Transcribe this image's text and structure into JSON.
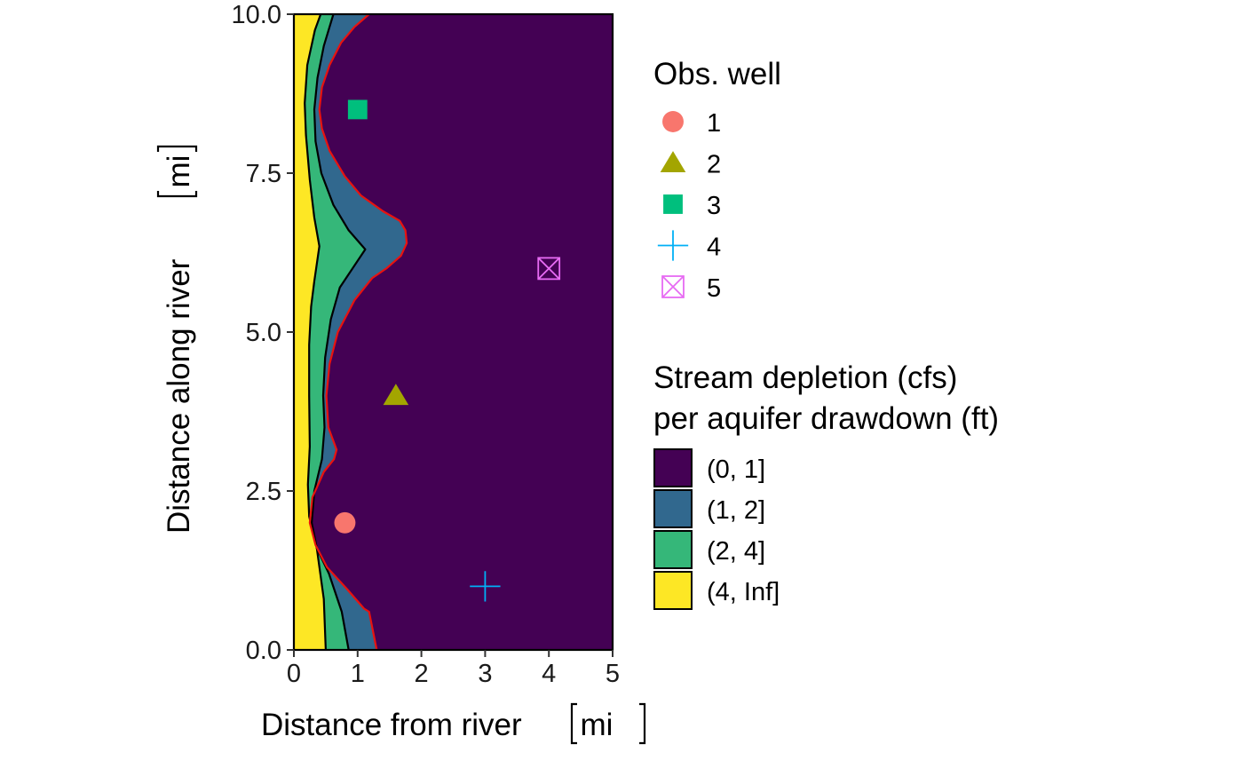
{
  "chart_data": {
    "type": "contour",
    "xlabel": "Distance from river",
    "xunit": "mi",
    "ylabel": "Distance along river",
    "yunit": "mi",
    "xlim": [
      0,
      5
    ],
    "ylim": [
      0,
      10
    ],
    "x_ticks": [
      0,
      1,
      2,
      3,
      4,
      5
    ],
    "x_tick_labels": [
      "0",
      "1",
      "2",
      "3",
      "4",
      "5"
    ],
    "y_ticks": [
      0,
      2.5,
      5,
      7.5,
      10
    ],
    "y_tick_labels": [
      "0.0",
      "2.5",
      "5.0",
      "7.5",
      "10.0"
    ],
    "grid": false,
    "fill_legend": {
      "title_lines": [
        "Stream depletion (cfs)",
        "per aquifer drawdown (ft)"
      ],
      "entries": [
        {
          "label": "(0, 1]",
          "color": "#440154"
        },
        {
          "label": "(1, 2]",
          "color": "#31688E"
        },
        {
          "label": "(2, 4]",
          "color": "#35B779"
        },
        {
          "label": "(4, Inf]",
          "color": "#FDE725"
        }
      ]
    },
    "wells_legend": {
      "title": "Obs. well",
      "entries": [
        {
          "label": "1",
          "shape": "circle",
          "color": "#F8766D"
        },
        {
          "label": "2",
          "shape": "triangle",
          "color": "#A3A500"
        },
        {
          "label": "3",
          "shape": "square",
          "color": "#00BF7D"
        },
        {
          "label": "4",
          "shape": "plus",
          "color": "#00B0F6"
        },
        {
          "label": "5",
          "shape": "boxed-x",
          "color": "#E76BF3"
        }
      ]
    },
    "wells": [
      {
        "label": "1",
        "x": 0.8,
        "y": 2.0
      },
      {
        "label": "2",
        "x": 1.6,
        "y": 4.0
      },
      {
        "label": "3",
        "x": 1.0,
        "y": 8.5
      },
      {
        "label": "4",
        "x": 3.0,
        "y": 1.0
      },
      {
        "label": "5",
        "x": 4.0,
        "y": 6.0
      }
    ],
    "contours": [
      {
        "level": "4",
        "color": "#000000",
        "points": [
          [
            0.5,
            0.0
          ],
          [
            0.47,
            0.8
          ],
          [
            0.36,
            1.6
          ],
          [
            0.24,
            2.1
          ],
          [
            0.22,
            2.6
          ],
          [
            0.25,
            3.2
          ],
          [
            0.24,
            4.0
          ],
          [
            0.24,
            4.8
          ],
          [
            0.27,
            5.4
          ],
          [
            0.32,
            5.8
          ],
          [
            0.4,
            6.35
          ],
          [
            0.32,
            6.8
          ],
          [
            0.25,
            7.4
          ],
          [
            0.19,
            8.1
          ],
          [
            0.17,
            8.6
          ],
          [
            0.21,
            9.2
          ],
          [
            0.33,
            9.75
          ],
          [
            0.42,
            10.0
          ]
        ]
      },
      {
        "level": "2",
        "color": "#000000",
        "points": [
          [
            0.86,
            0.0
          ],
          [
            0.75,
            0.6
          ],
          [
            0.55,
            1.2
          ],
          [
            0.36,
            1.6
          ],
          [
            0.28,
            2.0
          ],
          [
            0.32,
            2.5
          ],
          [
            0.44,
            3.0
          ],
          [
            0.48,
            3.5
          ],
          [
            0.46,
            4.0
          ],
          [
            0.49,
            4.6
          ],
          [
            0.58,
            5.2
          ],
          [
            0.72,
            5.7
          ],
          [
            1.12,
            6.3
          ],
          [
            0.86,
            6.6
          ],
          [
            0.62,
            7.0
          ],
          [
            0.43,
            7.5
          ],
          [
            0.34,
            8.0
          ],
          [
            0.32,
            8.5
          ],
          [
            0.37,
            9.0
          ],
          [
            0.47,
            9.5
          ],
          [
            0.62,
            10.0
          ]
        ]
      },
      {
        "level": "1",
        "color": "#E8130F",
        "points": [
          [
            1.3,
            0.0
          ],
          [
            1.18,
            0.6
          ],
          [
            1.1,
            0.65
          ],
          [
            0.84,
            0.95
          ],
          [
            0.52,
            1.3
          ],
          [
            0.34,
            1.65
          ],
          [
            0.25,
            2.0
          ],
          [
            0.29,
            2.4
          ],
          [
            0.47,
            2.8
          ],
          [
            0.63,
            3.0
          ],
          [
            0.67,
            3.15
          ],
          [
            0.54,
            3.5
          ],
          [
            0.51,
            4.0
          ],
          [
            0.56,
            4.5
          ],
          [
            0.69,
            5.0
          ],
          [
            0.95,
            5.5
          ],
          [
            1.23,
            5.85
          ],
          [
            1.45,
            6.0
          ],
          [
            1.68,
            6.2
          ],
          [
            1.77,
            6.4
          ],
          [
            1.75,
            6.6
          ],
          [
            1.66,
            6.75
          ],
          [
            1.4,
            6.9
          ],
          [
            1.05,
            7.15
          ],
          [
            0.8,
            7.45
          ],
          [
            0.56,
            7.85
          ],
          [
            0.44,
            8.2
          ],
          [
            0.4,
            8.5
          ],
          [
            0.44,
            8.85
          ],
          [
            0.56,
            9.2
          ],
          [
            0.74,
            9.55
          ],
          [
            0.95,
            9.8
          ],
          [
            1.18,
            10.0
          ]
        ]
      }
    ]
  }
}
